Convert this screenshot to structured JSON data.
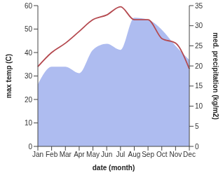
{
  "chart_data": {
    "type": "line",
    "x_label": "date (month)",
    "y_label": "max temp (C)",
    "y2_label": "med. precipitation (kg/m2)",
    "categories": [
      "Jan",
      "Feb",
      "Mar",
      "Apr",
      "May",
      "Jun",
      "Jul",
      "Aug",
      "Sep",
      "Oct",
      "Nov",
      "Dec"
    ],
    "ylim": [
      0,
      60
    ],
    "yticks": [
      0,
      10,
      20,
      30,
      40,
      50,
      60
    ],
    "y2lim": [
      0,
      35
    ],
    "y2ticks": [
      0,
      5,
      10,
      15,
      20,
      25,
      30,
      35
    ],
    "grid": false,
    "series": [
      {
        "type": "area",
        "axis": "y2",
        "color": "#aebcf0",
        "values": [
          15.4,
          19.8,
          19.8,
          18.2,
          24,
          25.5,
          24,
          32,
          31.5,
          29,
          25,
          21.5
        ]
      },
      {
        "type": "line",
        "axis": "y",
        "color": "#b54a50",
        "values": [
          34,
          40,
          44,
          49,
          54,
          56,
          59.5,
          54,
          54,
          46,
          44,
          33
        ]
      }
    ]
  }
}
